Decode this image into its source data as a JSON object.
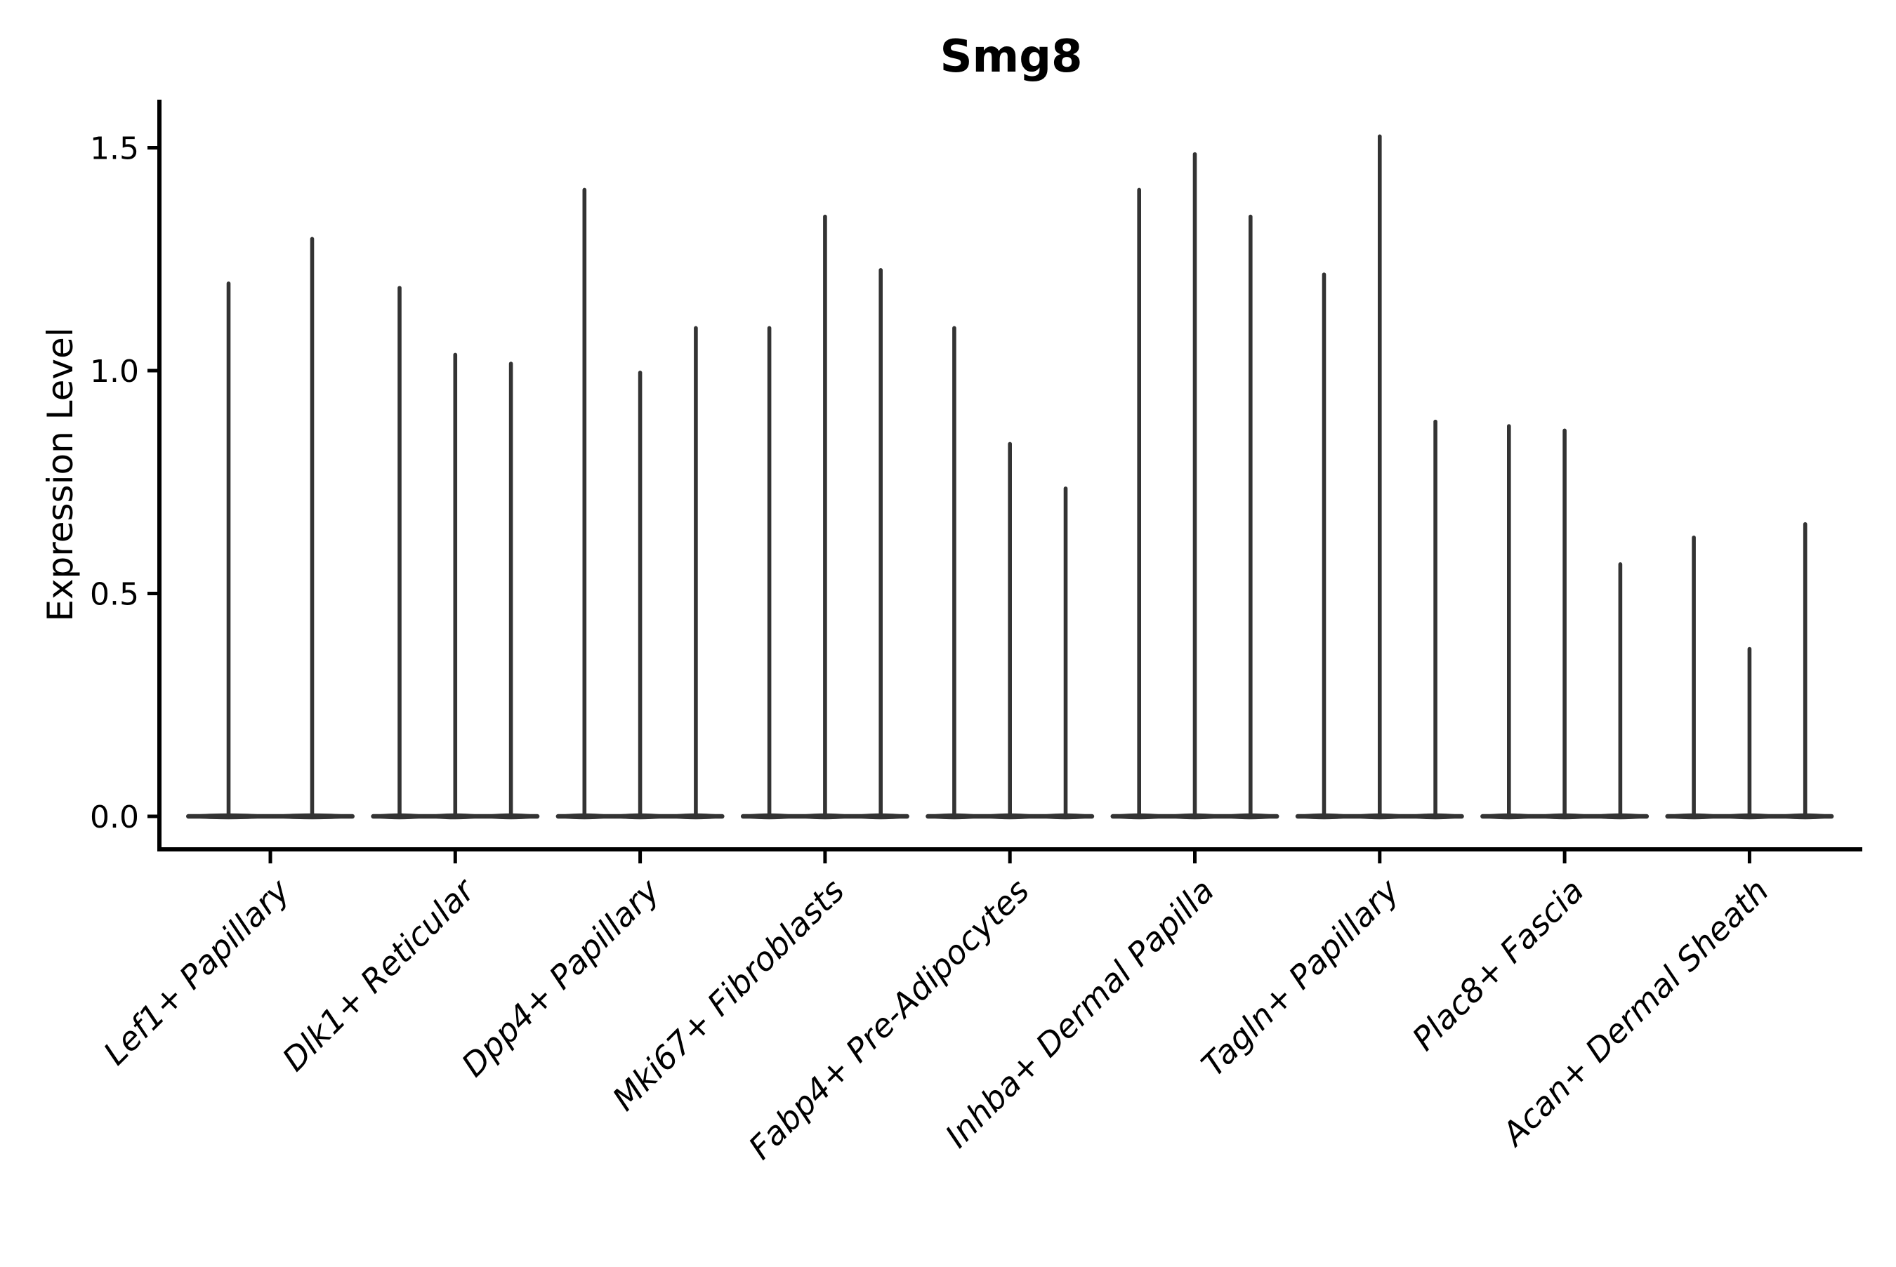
{
  "title": "Smg8",
  "y_axis": {
    "label": "Expression Level",
    "tick_labels": [
      "0.0",
      "0.5",
      "1.0",
      "1.5"
    ]
  },
  "chart_data": {
    "type": "violin",
    "title": "Smg8",
    "xlabel": "",
    "ylabel": "Expression Level",
    "grid": false,
    "legend": null,
    "yticks": [
      0.0,
      0.5,
      1.0,
      1.5
    ],
    "ytick_labels": [
      "0.0",
      "0.5",
      "1.0",
      "1.5"
    ],
    "ylim": [
      -0.07,
      1.61
    ],
    "categories": [
      "Lef1+ Papillary",
      "Dlk1+ Reticular",
      "Dpp4+ Papillary",
      "Mki67+ Fibroblasts",
      "Fabp4+ Pre-Adipocytes",
      "Inhba+ Dermal Papilla",
      "Tagln+ Papillary",
      "Plac8+ Fascia",
      "Acan+ Dermal Sheath"
    ],
    "violins": [
      {
        "category": "Lef1+ Papillary",
        "maxima": [
          1.2,
          1.3
        ]
      },
      {
        "category": "Dlk1+ Reticular",
        "maxima": [
          1.19,
          1.04,
          1.02
        ]
      },
      {
        "category": "Dpp4+ Papillary",
        "maxima": [
          1.41,
          1.0,
          1.1
        ]
      },
      {
        "category": "Mki67+ Fibroblasts",
        "maxima": [
          1.1,
          1.35,
          1.23
        ]
      },
      {
        "category": "Fabp4+ Pre-Adipocytes",
        "maxima": [
          1.1,
          0.84,
          0.74
        ]
      },
      {
        "category": "Inhba+ Dermal Papilla",
        "maxima": [
          1.41,
          1.49,
          1.35
        ]
      },
      {
        "category": "Tagln+ Papillary",
        "maxima": [
          1.22,
          1.53,
          0.89
        ]
      },
      {
        "category": "Plac8+ Fascia",
        "maxima": [
          0.88,
          0.87,
          0.57
        ]
      },
      {
        "category": "Acan+ Dermal Sheath",
        "maxima": [
          0.63,
          0.38,
          0.66
        ]
      }
    ],
    "style": {
      "violin_color": "#333333",
      "axis_color": "#000000",
      "text_color": "#000000",
      "background_color": "#ffffff"
    },
    "layout_hint": {
      "baseline_value": 0.0,
      "violins_are_zero_inflated_spikes": true
    }
  }
}
